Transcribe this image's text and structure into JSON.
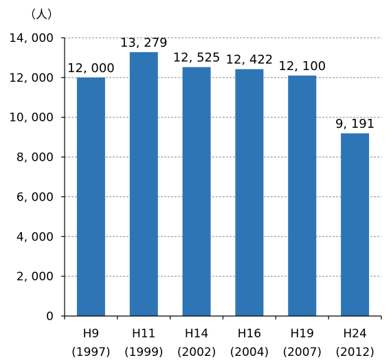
{
  "chart_data": {
    "type": "bar",
    "unit_label": "（人）",
    "categories": [
      {
        "era": "H9",
        "year": "(1997)"
      },
      {
        "era": "H11",
        "year": "(1999)"
      },
      {
        "era": "H14",
        "year": "(2002)"
      },
      {
        "era": "H16",
        "year": "(2004)"
      },
      {
        "era": "H19",
        "year": "(2007)"
      },
      {
        "era": "H24",
        "year": "(2012)"
      }
    ],
    "values": [
      12000,
      13279,
      12525,
      12422,
      12100,
      9191
    ],
    "value_labels": [
      "12, 000",
      "13, 279",
      "12, 525",
      "12, 422",
      "12, 100",
      "9, 191"
    ],
    "ylim": [
      0,
      14000
    ],
    "yticks": [
      0,
      2000,
      4000,
      6000,
      8000,
      10000,
      12000,
      14000
    ],
    "ytick_labels": [
      "0",
      "2, 000",
      "4, 000",
      "6, 000",
      "8, 000",
      "10, 000",
      "12, 000",
      "14, 000"
    ],
    "grid": true,
    "bar_color": "#2E75B6"
  }
}
